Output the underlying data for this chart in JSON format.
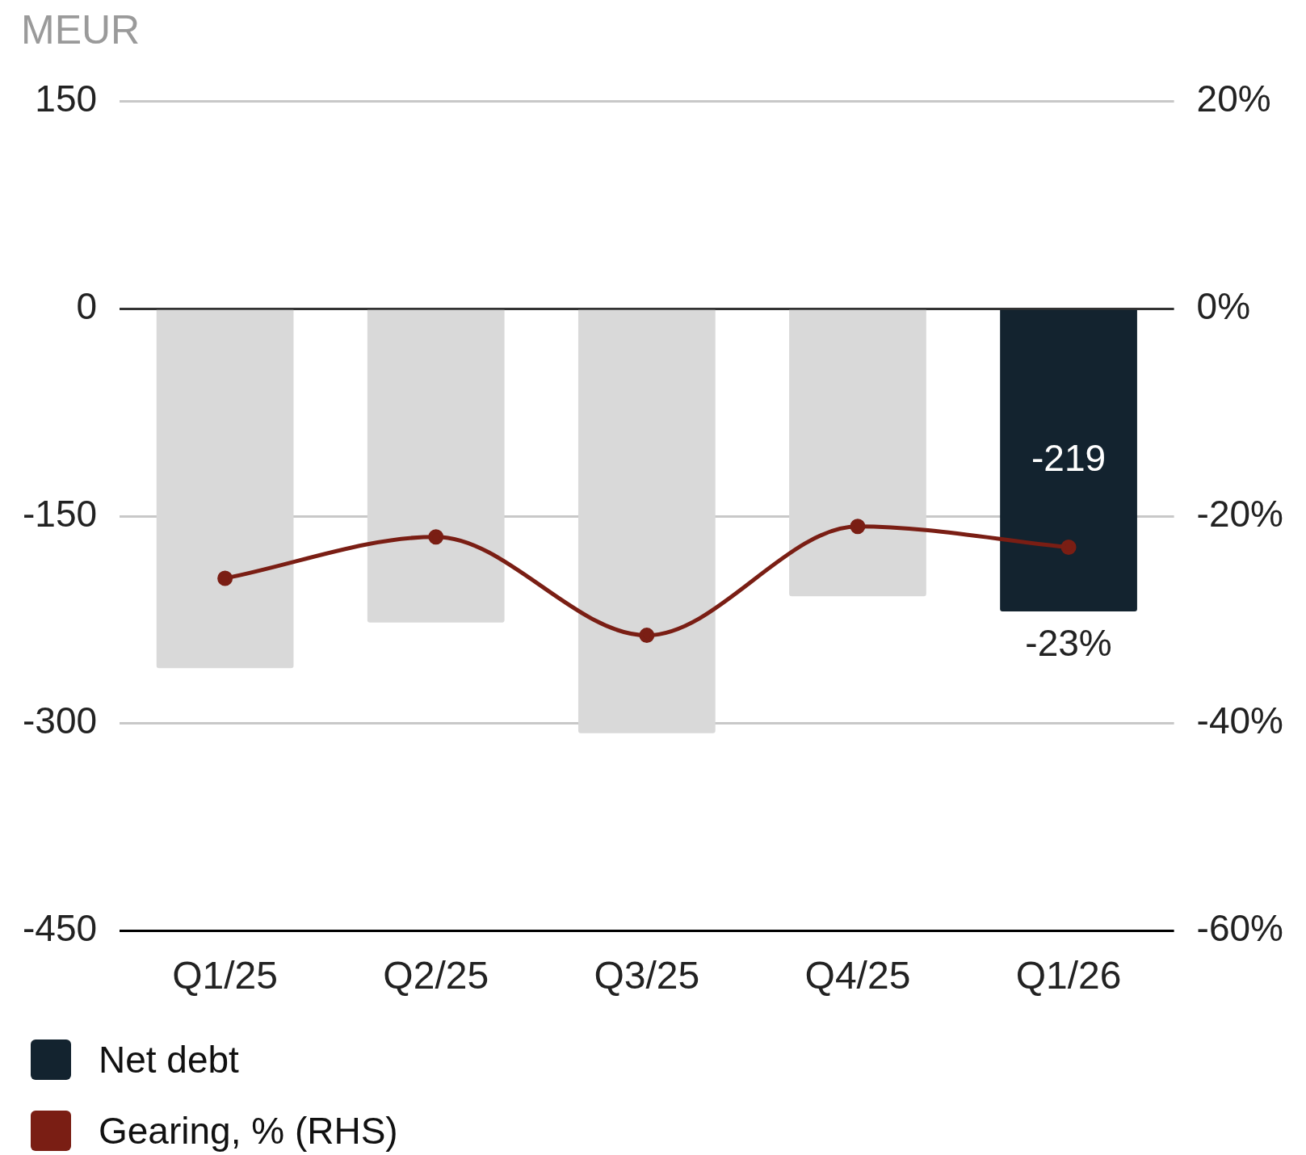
{
  "chart_data": {
    "type": "bar",
    "ylabel": "MEUR",
    "categories": [
      "Q1/25",
      "Q2/25",
      "Q3/25",
      "Q4/25",
      "Q1/26"
    ],
    "series": [
      {
        "name": "Net debt",
        "color": "#13232f",
        "colors": [
          "#d9d9d9",
          "#d9d9d9",
          "#d9d9d9",
          "#d9d9d9",
          "#13232f"
        ],
        "values": [
          -260,
          -227,
          -307,
          -208,
          -219
        ],
        "value_labels": [
          null,
          null,
          null,
          null,
          "-219"
        ]
      },
      {
        "name": "Gearing, % (RHS)",
        "type": "line",
        "axis": "y2",
        "color": "#7a1e14",
        "values": [
          -26,
          -22,
          -31.5,
          -21,
          -23
        ],
        "value_labels": [
          null,
          null,
          null,
          null,
          "-23%"
        ]
      }
    ],
    "ylim": [
      -450,
      150
    ],
    "yticks": [
      -450,
      -300,
      -150,
      0,
      150
    ],
    "y2lim": [
      -60,
      20
    ],
    "y2ticks": [
      {
        "value": -60,
        "label": "-60%"
      },
      {
        "value": -40,
        "label": "-40%"
      },
      {
        "value": -20,
        "label": "-20%"
      },
      {
        "value": 0,
        "label": "0%"
      },
      {
        "value": 20,
        "label": "20%"
      }
    ],
    "grid": "y",
    "legend": "bottom left",
    "marker": "circle",
    "line_style": "solid"
  }
}
